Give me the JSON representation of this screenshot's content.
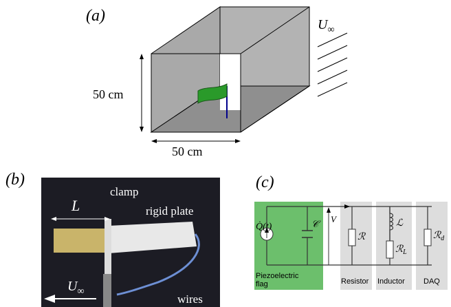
{
  "panel_a": {
    "label": "(a)",
    "flow": {
      "symbol": "U",
      "sub": "∞"
    },
    "height": "50 cm",
    "width": "50 cm"
  },
  "panel_b": {
    "label": "(b)",
    "length": "L",
    "clamp": "clamp",
    "plate": "rigid plate",
    "flow": {
      "symbol": "U",
      "sub": "∞"
    },
    "wires": "wires"
  },
  "panel_c": {
    "label": "(c)",
    "source": "Q̇(t)",
    "capacitor": "𝒞",
    "voltage": "V",
    "resistor": "ℛ",
    "inductor": "ℒ",
    "inductor_resistance": {
      "symbol": "ℛ",
      "sub": "L"
    },
    "daq_resistance": {
      "symbol": "ℛ",
      "sub": "d"
    },
    "flag_caption": [
      "Piezoelectric",
      "flag"
    ],
    "resistor_caption": "Resistor",
    "inductor_caption": "Inductor",
    "daq_caption": "DAQ"
  }
}
